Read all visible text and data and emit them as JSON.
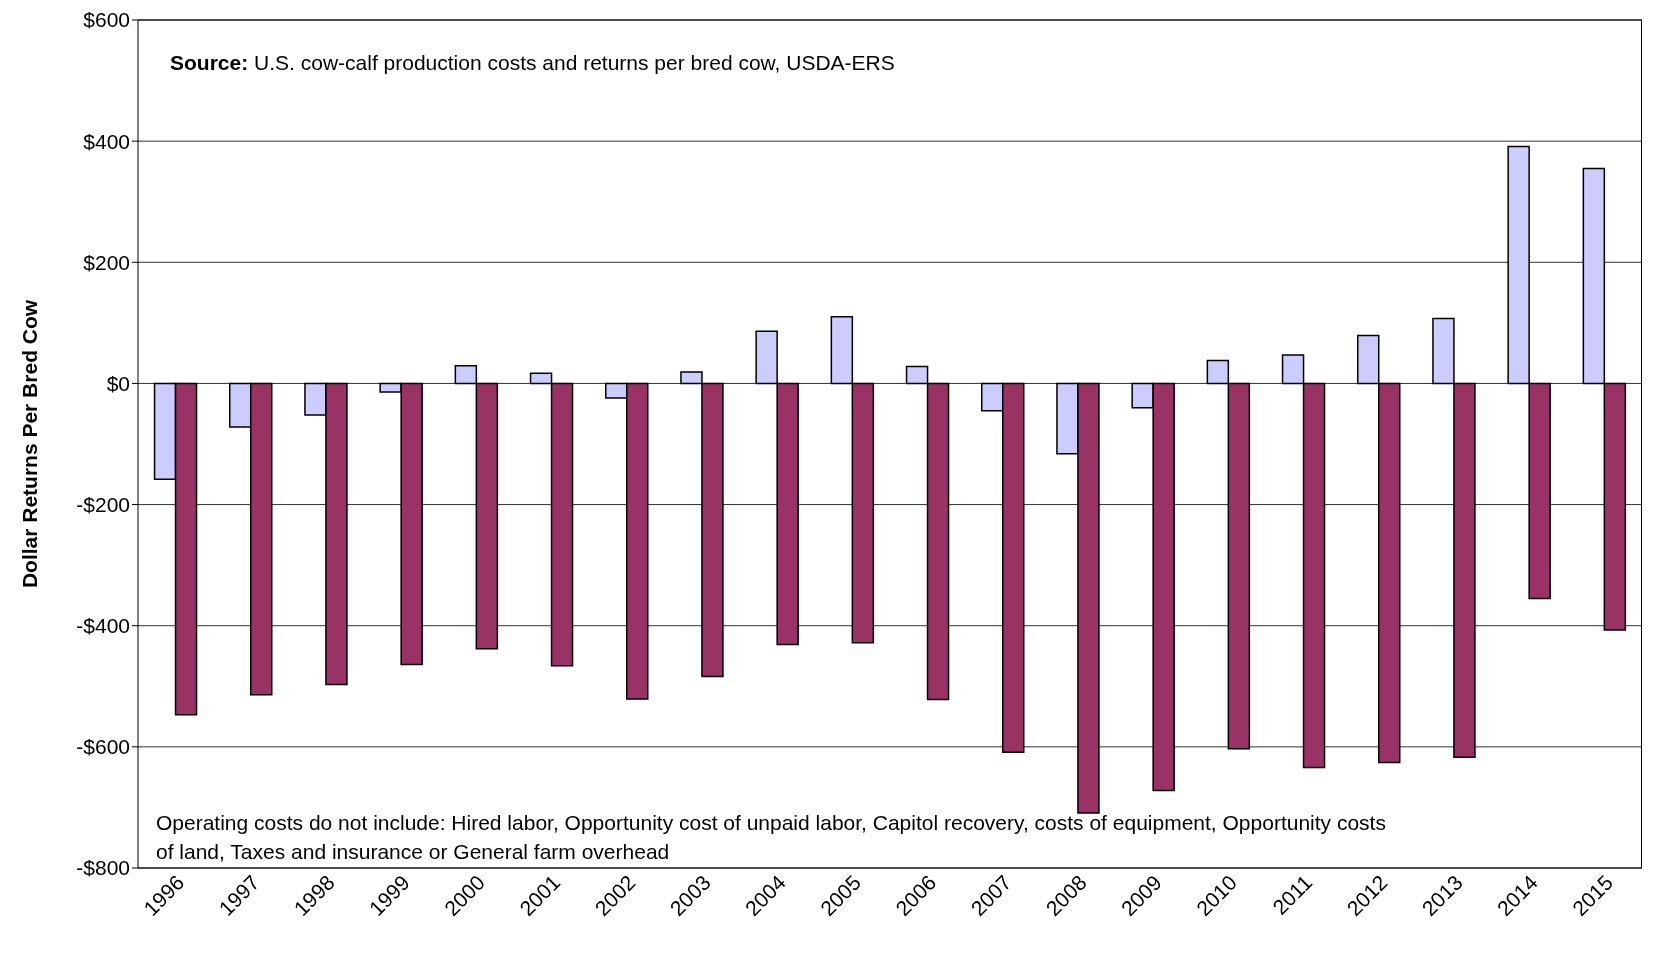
{
  "chart_data": {
    "type": "bar",
    "ylabel": "Dollar Returns Per Bred Cow",
    "categories": [
      "1996",
      "1997",
      "1998",
      "1999",
      "2000",
      "2001",
      "2002",
      "2003",
      "2004",
      "2005",
      "2006",
      "2007",
      "2008",
      "2009",
      "2010",
      "2011",
      "2012",
      "2013",
      "2014",
      "2015"
    ],
    "series": [
      {
        "color": "#ccccff",
        "values": [
          -158,
          -72,
          -52,
          -14,
          29,
          17,
          -24,
          19,
          86,
          110,
          28,
          -45,
          -116,
          -40,
          38,
          47,
          79,
          107,
          391,
          355
        ]
      },
      {
        "color": "#993366",
        "values": [
          -547,
          -514,
          -497,
          -464,
          -438,
          -466,
          -521,
          -484,
          -431,
          -428,
          -522,
          -609,
          -709,
          -672,
          -603,
          -634,
          -626,
          -617,
          -355,
          -407
        ]
      }
    ],
    "ylim": [
      -800,
      600
    ],
    "yticks": [
      {
        "value": -800,
        "label": "-$800"
      },
      {
        "value": -600,
        "label": "-$600"
      },
      {
        "value": -400,
        "label": "-$400"
      },
      {
        "value": -200,
        "label": "-$200"
      },
      {
        "value": 0,
        "label": "$0"
      },
      {
        "value": 200,
        "label": "$200"
      },
      {
        "value": 400,
        "label": "$400"
      },
      {
        "value": 600,
        "label": "$600"
      }
    ],
    "grid": "y",
    "annotations": [
      "Source:  U.S. cow-calf production costs and returns per bred cow, USDA-ERS",
      "Operating costs do not include: Hired labor, Opportunity cost of unpaid labor, Capitol recovery, costs of equipment, Opportunity costs of land, Taxes and insurance or General farm overhead"
    ]
  }
}
